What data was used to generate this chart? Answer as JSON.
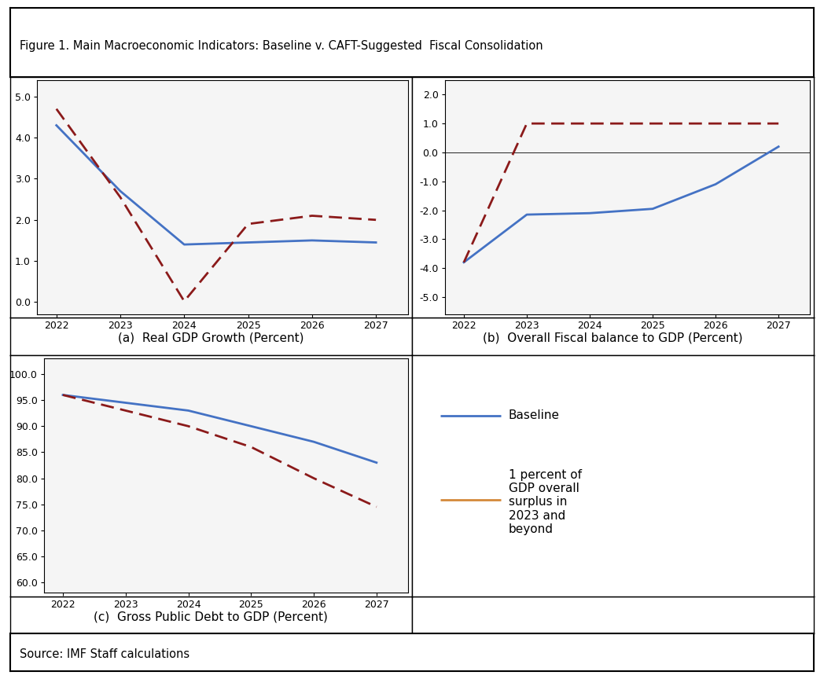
{
  "title": "Figure 1. Main Macroeconomic Indicators: Baseline v. CAFT-Suggested  Fiscal Consolidation",
  "source": "Source: IMF Staff calculations",
  "years": [
    2022,
    2023,
    2024,
    2025,
    2026,
    2027
  ],
  "panel_a": {
    "title": "(a)  Real GDP Growth (Percent)",
    "baseline": [
      4.3,
      2.7,
      1.4,
      1.45,
      1.5,
      1.45
    ],
    "caft": [
      4.7,
      2.55,
      0.02,
      1.9,
      2.1,
      2.0
    ],
    "ylim": [
      -0.3,
      5.4
    ],
    "yticks": [
      0.0,
      1.0,
      2.0,
      3.0,
      4.0,
      5.0
    ],
    "ytick_labels": [
      "0.0",
      "1.0",
      "2.0",
      "3.0",
      "4.0",
      "5.0"
    ]
  },
  "panel_b": {
    "title": "(b)  Overall Fiscal balance to GDP (Percent)",
    "baseline": [
      -3.8,
      -2.15,
      -2.1,
      -1.95,
      -1.1,
      0.2
    ],
    "caft": [
      -3.8,
      1.0,
      1.0,
      1.0,
      1.0,
      1.0
    ],
    "ylim": [
      -5.6,
      2.5
    ],
    "yticks": [
      -5.0,
      -4.0,
      -3.0,
      -2.0,
      -1.0,
      0.0,
      1.0,
      2.0
    ],
    "ytick_labels": [
      "-5.0",
      "-4.0",
      "-3.0",
      "-2.0",
      "-1.0",
      "0.0",
      "1.0",
      "2.0"
    ]
  },
  "panel_c": {
    "title": "(c)  Gross Public Debt to GDP (Percent)",
    "baseline": [
      96.0,
      94.5,
      93.0,
      90.0,
      87.0,
      83.0
    ],
    "caft": [
      96.0,
      93.0,
      90.0,
      86.0,
      80.0,
      74.5
    ],
    "ylim": [
      58,
      103
    ],
    "yticks": [
      60.0,
      65.0,
      70.0,
      75.0,
      80.0,
      85.0,
      90.0,
      95.0,
      100.0
    ],
    "ytick_labels": [
      "60.0",
      "65.0",
      "70.0",
      "75.0",
      "80.0",
      "85.0",
      "90.0",
      "95.0",
      "100.0"
    ]
  },
  "baseline_color": "#4472C4",
  "caft_color": "#8B1A1A",
  "legend_caft_color": "#D4893A",
  "baseline_lw": 2.0,
  "caft_lw": 2.0,
  "legend_baseline_label": "Baseline",
  "legend_caft_label": "1 percent of\nGDP overall\nsurplus in\n2023 and\nbeyond"
}
